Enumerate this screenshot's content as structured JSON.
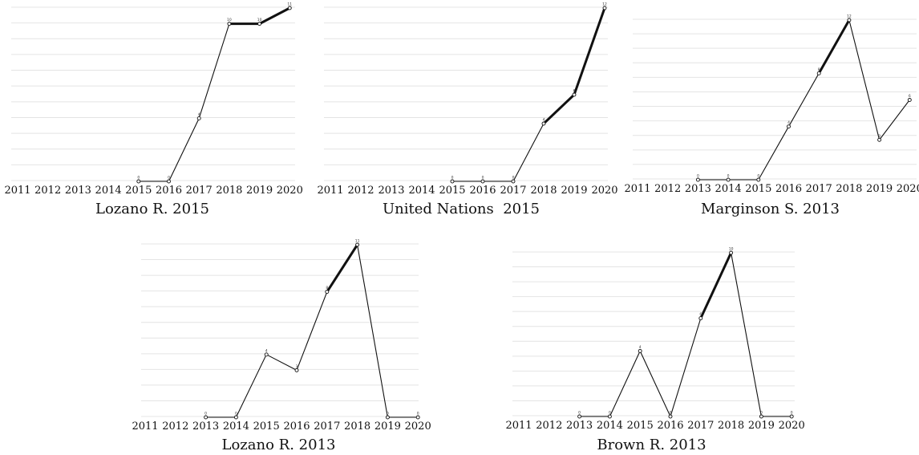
{
  "chart_data": [
    {
      "type": "line",
      "title": "Lozano R. 2015",
      "categories": [
        "2011",
        "2012",
        "2013",
        "2014",
        "2015",
        "2016",
        "2017",
        "2018",
        "2019",
        "2020"
      ],
      "x": [
        "2015",
        "2016",
        "2017",
        "2018",
        "2019",
        "2020"
      ],
      "values": [
        0,
        0,
        4,
        10,
        10,
        11
      ],
      "point_labels": [
        "0",
        "0",
        "4",
        "10",
        "10",
        "11"
      ],
      "ylim": [
        0,
        11
      ],
      "grid": true,
      "thick_segments": [
        [
          3,
          4
        ],
        [
          4,
          5
        ]
      ]
    },
    {
      "type": "line",
      "title": "United Nations  2015",
      "categories": [
        "2011",
        "2012",
        "2013",
        "2014",
        "2015",
        "2016",
        "2017",
        "2018",
        "2019",
        "2020"
      ],
      "x": [
        "2015",
        "2016",
        "2017",
        "2018",
        "2019",
        "2020"
      ],
      "values": [
        0,
        0,
        0,
        4,
        6,
        12
      ],
      "point_labels": [
        "0",
        "0",
        "0",
        "4",
        "6",
        "12"
      ],
      "ylim": [
        0,
        12
      ],
      "grid": true,
      "thick_segments": [
        [
          3,
          4
        ],
        [
          4,
          5
        ]
      ]
    },
    {
      "type": "line",
      "title": "Marginson S. 2013",
      "categories": [
        "2011",
        "2012",
        "2013",
        "2014",
        "2015",
        "2016",
        "2017",
        "2018",
        "2019",
        "2020"
      ],
      "x": [
        "2013",
        "2014",
        "2015",
        "2016",
        "2017",
        "2018",
        "2019",
        "2020"
      ],
      "values": [
        0,
        0,
        0,
        4,
        8,
        12,
        3,
        6
      ],
      "point_labels": [
        "0",
        "0",
        "0",
        "4",
        "8",
        "12",
        "3",
        "6"
      ],
      "ylim": [
        0,
        12
      ],
      "grid": true,
      "thick_segments": [
        [
          4,
          5
        ]
      ]
    },
    {
      "type": "line",
      "title": "Lozano R. 2013",
      "categories": [
        "2011",
        "2012",
        "2013",
        "2014",
        "2015",
        "2016",
        "2017",
        "2018",
        "2019",
        "2020"
      ],
      "x": [
        "2013",
        "2014",
        "2015",
        "2016",
        "2017",
        "2018",
        "2019",
        "2020"
      ],
      "values": [
        0,
        0,
        4,
        3,
        8,
        11,
        0,
        0
      ],
      "point_labels": [
        "0",
        "0",
        "4",
        "3",
        "8",
        "11",
        "0",
        "0"
      ],
      "ylim": [
        0,
        11
      ],
      "grid": true,
      "thick_segments": [
        [
          4,
          5
        ]
      ]
    },
    {
      "type": "line",
      "title": "Brown R. 2013",
      "categories": [
        "2011",
        "2012",
        "2013",
        "2014",
        "2015",
        "2016",
        "2017",
        "2018",
        "2019",
        "2020"
      ],
      "x": [
        "2013",
        "2014",
        "2015",
        "2016",
        "2017",
        "2018",
        "2019",
        "2020"
      ],
      "values": [
        0,
        0,
        4,
        0,
        6,
        10,
        0,
        0
      ],
      "point_labels": [
        "0",
        "0",
        "4",
        "0",
        "6",
        "10",
        "0",
        "0"
      ],
      "ylim": [
        0,
        10
      ],
      "grid": true,
      "thick_segments": [
        [
          4,
          5
        ]
      ]
    }
  ]
}
